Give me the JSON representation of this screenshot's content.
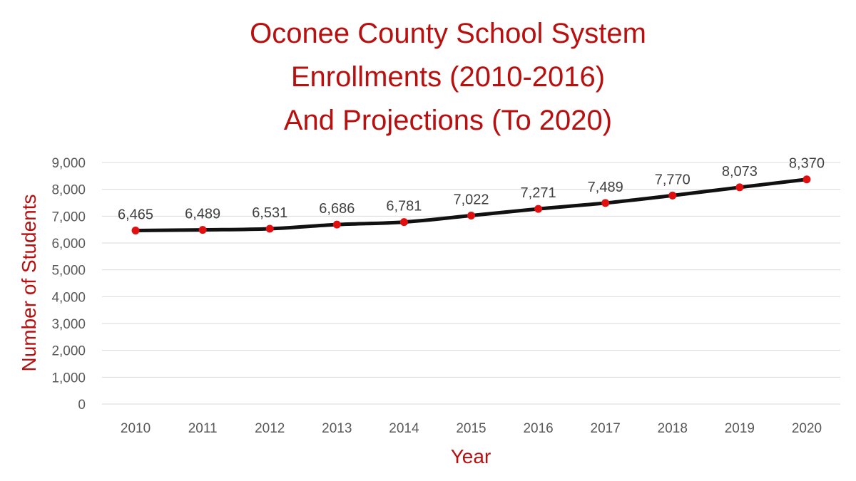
{
  "colors": {
    "title": "#b80f0f",
    "axis_title": "#b80f0f",
    "line": "#111111",
    "marker": "#e01010",
    "grid": "#d9d9d9",
    "tick_text": "#595959",
    "label_text": "#404040"
  },
  "chart_data": {
    "type": "line",
    "title_lines": [
      "Oconee County School System",
      "Enrollments (2010-2016)",
      "And Projections (To 2020)"
    ],
    "xlabel": "Year",
    "ylabel": "Number of Students",
    "categories": [
      "2010",
      "2011",
      "2012",
      "2013",
      "2014",
      "2015",
      "2016",
      "2017",
      "2018",
      "2019",
      "2020"
    ],
    "values": [
      6465,
      6489,
      6531,
      6686,
      6781,
      7022,
      7271,
      7489,
      7770,
      8073,
      8370
    ],
    "data_labels": [
      "6,465",
      "6,489",
      "6,531",
      "6,686",
      "6,781",
      "7,022",
      "7,271",
      "7,489",
      "7,770",
      "8,073",
      "8,370"
    ],
    "ylim": [
      0,
      9000
    ],
    "yticks": [
      0,
      1000,
      2000,
      3000,
      4000,
      5000,
      6000,
      7000,
      8000,
      9000
    ],
    "ytick_labels": [
      "0",
      "1,000",
      "2,000",
      "3,000",
      "4,000",
      "5,000",
      "6,000",
      "7,000",
      "8,000",
      "9,000"
    ],
    "grid": true,
    "legend": "none"
  }
}
